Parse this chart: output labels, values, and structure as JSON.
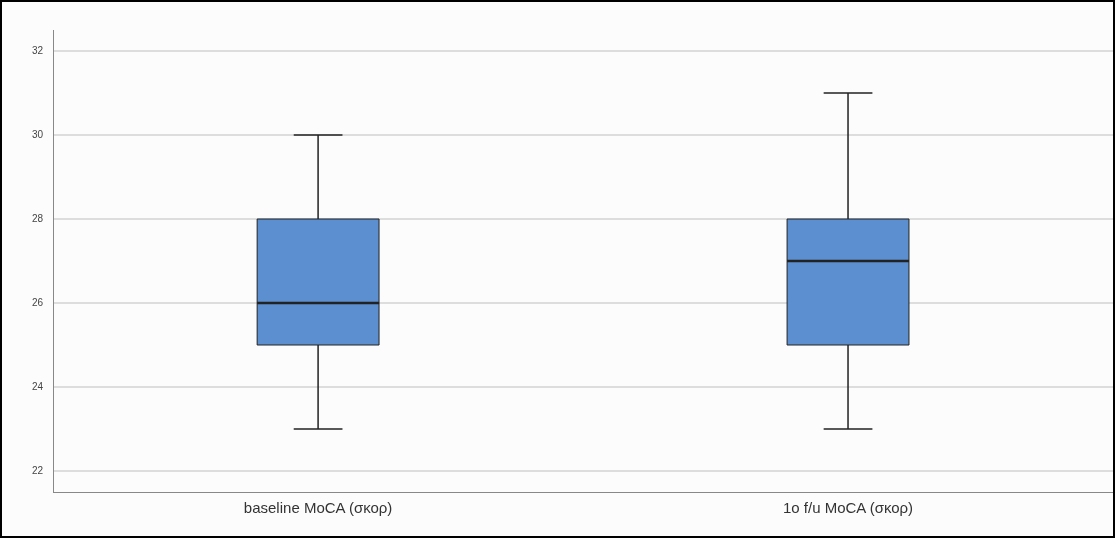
{
  "chart_data": {
    "type": "box",
    "categories": [
      "baseline MoCA (σκορ)",
      "1o f/u MoCA (σκορ)"
    ],
    "boxes": [
      {
        "low": 23,
        "q1": 25,
        "median": 26,
        "q3": 28,
        "high": 30
      },
      {
        "low": 23,
        "q1": 25,
        "median": 27,
        "q3": 28,
        "high": 31
      }
    ],
    "color": "#5b8fd0",
    "ylim": [
      21.5,
      32.5
    ],
    "yticks": [
      22,
      24,
      26,
      28,
      30,
      32
    ],
    "grid": "y",
    "legend": false
  }
}
